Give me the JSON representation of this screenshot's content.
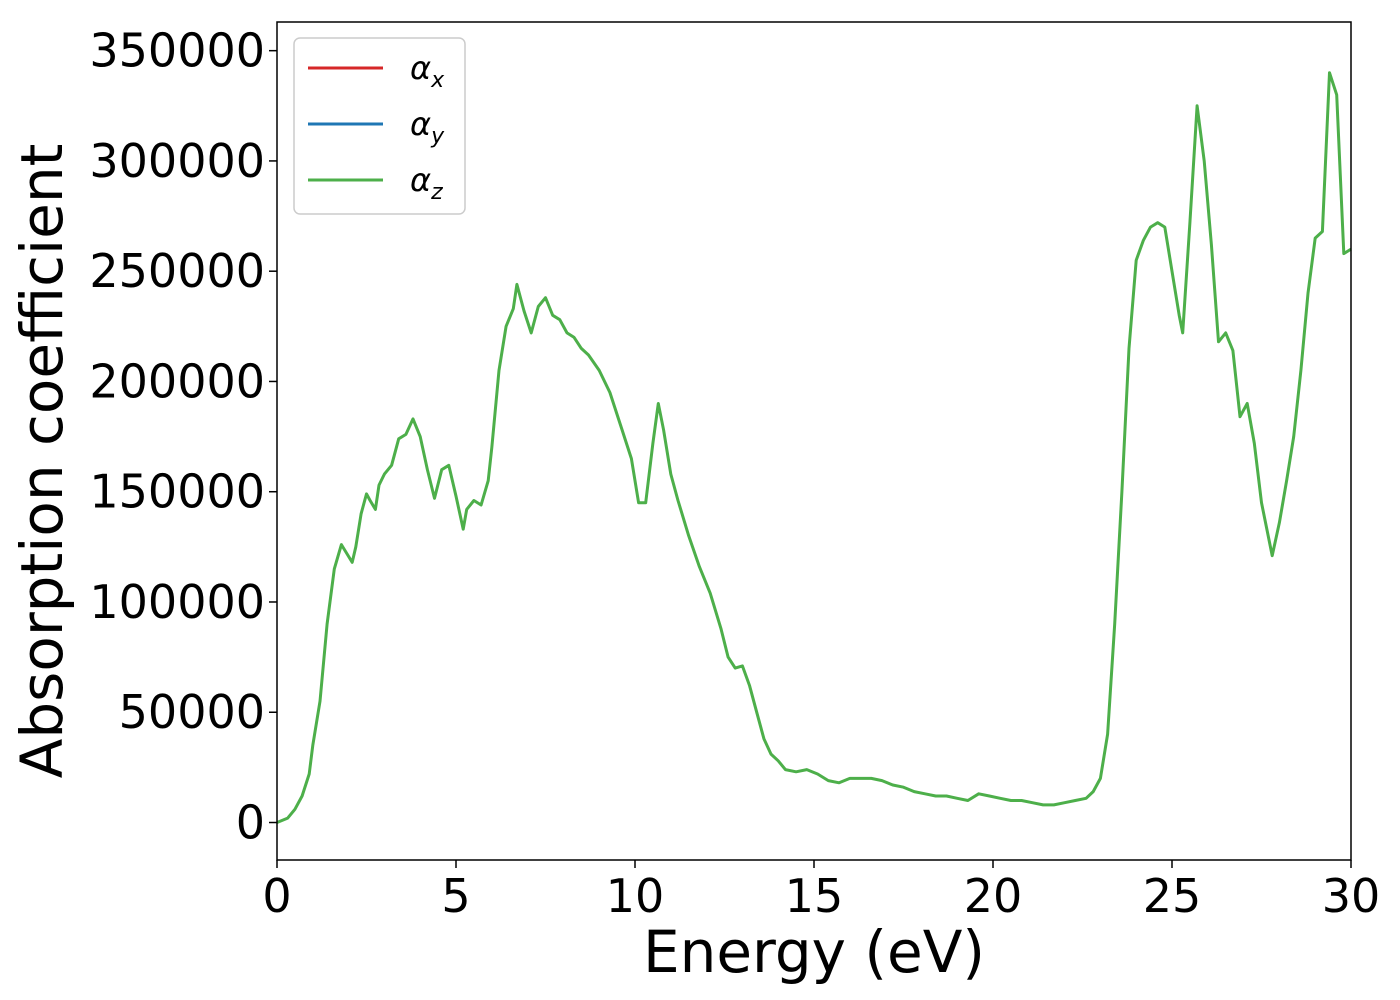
{
  "chart_data": {
    "type": "line",
    "title": "",
    "xlabel": "Energy (eV)",
    "ylabel": "Absorption coefficient",
    "xlim": [
      0,
      30
    ],
    "ylim": [
      -17000,
      363000
    ],
    "xticks": [
      0,
      5,
      10,
      15,
      20,
      25,
      30
    ],
    "yticks": [
      0,
      50000,
      100000,
      150000,
      200000,
      250000,
      300000,
      350000
    ],
    "xtick_labels": [
      "0",
      "5",
      "10",
      "15",
      "20",
      "25",
      "30"
    ],
    "ytick_labels": [
      "0",
      "50000",
      "100000",
      "150000",
      "200000",
      "250000",
      "300000",
      "350000"
    ],
    "grid": false,
    "legend_position": "top-left",
    "legend": [
      {
        "symbol": "α",
        "subscript": "x",
        "color": "#d62728"
      },
      {
        "symbol": "α",
        "subscript": "y",
        "color": "#1f77b4"
      },
      {
        "symbol": "α",
        "subscript": "z",
        "color": "#4daf4a"
      }
    ],
    "x": [
      0,
      0.3,
      0.5,
      0.7,
      0.9,
      1.0,
      1.2,
      1.4,
      1.6,
      1.8,
      1.95,
      2.1,
      2.2,
      2.35,
      2.5,
      2.6,
      2.75,
      2.85,
      3.0,
      3.2,
      3.4,
      3.6,
      3.8,
      4.0,
      4.2,
      4.4,
      4.6,
      4.8,
      5.0,
      5.2,
      5.3,
      5.5,
      5.7,
      5.9,
      6.0,
      6.2,
      6.4,
      6.6,
      6.7,
      6.9,
      7.1,
      7.3,
      7.5,
      7.7,
      7.9,
      8.1,
      8.3,
      8.5,
      8.7,
      9.0,
      9.3,
      9.6,
      9.9,
      10.1,
      10.3,
      10.5,
      10.65,
      10.8,
      11.0,
      11.2,
      11.5,
      11.8,
      12.1,
      12.4,
      12.6,
      12.8,
      13.0,
      13.2,
      13.4,
      13.6,
      13.8,
      14.0,
      14.2,
      14.5,
      14.8,
      15.1,
      15.4,
      15.7,
      16.0,
      16.3,
      16.6,
      16.9,
      17.2,
      17.5,
      17.8,
      18.1,
      18.4,
      18.7,
      19.0,
      19.3,
      19.6,
      19.9,
      20.2,
      20.5,
      20.8,
      21.1,
      21.4,
      21.7,
      22.0,
      22.3,
      22.6,
      22.8,
      23.0,
      23.2,
      23.4,
      23.6,
      23.8,
      24.0,
      24.2,
      24.4,
      24.6,
      24.8,
      25.0,
      25.2,
      25.3,
      25.5,
      25.7,
      25.9,
      26.1,
      26.3,
      26.5,
      26.7,
      26.9,
      27.1,
      27.3,
      27.5,
      27.8,
      28.0,
      28.2,
      28.4,
      28.6,
      28.8,
      29.0,
      29.2,
      29.4,
      29.6,
      29.8,
      30.0
    ],
    "series": [
      {
        "name": "",
        "color": "#4daf4a",
        "values": [
          0,
          2000,
          6000,
          12000,
          22000,
          35000,
          55000,
          90000,
          115000,
          126000,
          122000,
          118000,
          125000,
          140000,
          149000,
          146000,
          142000,
          153000,
          158000,
          162000,
          174000,
          176000,
          183000,
          175000,
          160000,
          147000,
          160000,
          162000,
          148000,
          133000,
          142000,
          146000,
          144000,
          155000,
          170000,
          205000,
          225000,
          233000,
          244000,
          232000,
          222000,
          234000,
          238000,
          230000,
          228000,
          222000,
          220000,
          215000,
          212000,
          205000,
          195000,
          180000,
          165000,
          145000,
          145000,
          172000,
          190000,
          178000,
          158000,
          146000,
          130000,
          116000,
          104000,
          88000,
          75000,
          70000,
          71000,
          62000,
          50000,
          38000,
          31000,
          28000,
          24000,
          23000,
          24000,
          22000,
          19000,
          18000,
          20000,
          20000,
          20000,
          19000,
          17000,
          16000,
          14000,
          13000,
          12000,
          12000,
          11000,
          10000,
          13000,
          12000,
          11000,
          10000,
          10000,
          9000,
          8000,
          8000,
          9000,
          10000,
          11000,
          14000,
          20000,
          40000,
          90000,
          150000,
          215000,
          255000,
          264000,
          270000,
          272000,
          270000,
          250000,
          230000,
          222000,
          272000,
          325000,
          300000,
          262000,
          218000,
          222000,
          214000,
          184000,
          190000,
          172000,
          145000,
          121000,
          136000,
          155000,
          175000,
          205000,
          240000,
          265000,
          268000,
          340000,
          330000,
          258000,
          260000
        ]
      }
    ]
  }
}
